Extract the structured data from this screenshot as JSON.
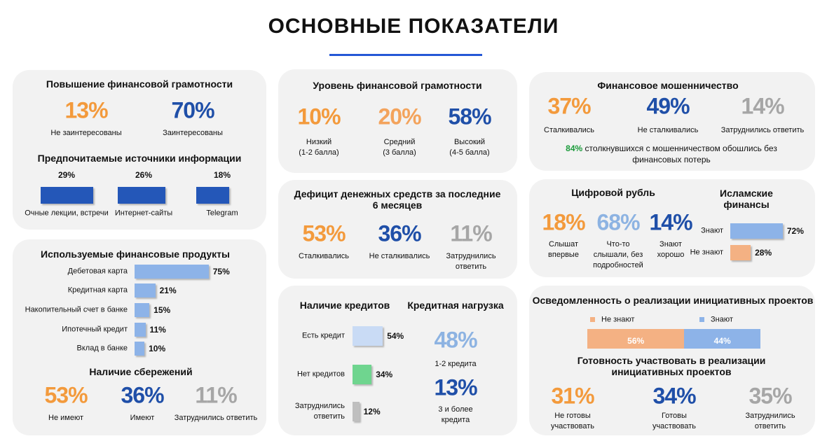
{
  "title": "ОСНОВНЫЕ ПОКАЗАТЕЛИ",
  "literacy_interest": {
    "title": "Повышение финансовой грамотности",
    "stats": [
      {
        "value": "13%",
        "label": "Не заинтересованы",
        "color": "#f39a3c"
      },
      {
        "value": "70%",
        "label": "Заинтересованы",
        "color": "#1f4fa8"
      }
    ]
  },
  "info_sources": {
    "title": "Предпочитаемые источники информации",
    "color": "#2457b8",
    "bars": [
      {
        "value": 29,
        "value_label": "29%",
        "label": "Очные лекции, встречи"
      },
      {
        "value": 26,
        "value_label": "26%",
        "label": "Интернет-сайты"
      },
      {
        "value": 18,
        "value_label": "18%",
        "label": "Telegram"
      }
    ]
  },
  "products": {
    "title": "Используемые финансовые продукты",
    "color": "#8db3e8",
    "bars": [
      {
        "value": 75,
        "value_label": "75%",
        "label": "Дебетовая карта"
      },
      {
        "value": 21,
        "value_label": "21%",
        "label": "Кредитная карта"
      },
      {
        "value": 15,
        "value_label": "15%",
        "label": "Накопительный счет в банке"
      },
      {
        "value": 11,
        "value_label": "11%",
        "label": "Ипотечный кредит"
      },
      {
        "value": 10,
        "value_label": "10%",
        "label": "Вклад в банке"
      }
    ]
  },
  "savings": {
    "title": "Наличие сбережений",
    "stats": [
      {
        "value": "53%",
        "label": "Не имеют",
        "color": "#f39a3c"
      },
      {
        "value": "36%",
        "label": "Имеют",
        "color": "#1f4fa8"
      },
      {
        "value": "11%",
        "label": "Затруднились ответить",
        "color": "#a6a6a6"
      }
    ]
  },
  "literacy_level": {
    "title": "Уровень финансовой грамотности",
    "stats": [
      {
        "value": "10%",
        "label": "Низкий\n(1-2 балла)",
        "color": "#f39a3c"
      },
      {
        "value": "20%",
        "label": "Средний\n(3 балла)",
        "color": "#f3a35c"
      },
      {
        "value": "58%",
        "label": "Высокий\n(4-5 балла)",
        "color": "#1f4fa8"
      }
    ]
  },
  "cash_deficit": {
    "title": "Дефицит денежных средств за последние 6 месяцев",
    "stats": [
      {
        "value": "53%",
        "label": "Сталкивались",
        "color": "#f39a3c"
      },
      {
        "value": "36%",
        "label": "Не сталкивались",
        "color": "#1f4fa8"
      },
      {
        "value": "11%",
        "label": "Затруднились\nответить",
        "color": "#a6a6a6"
      }
    ]
  },
  "credits": {
    "title": "Наличие кредитов",
    "bars": [
      {
        "value": 54,
        "value_label": "54%",
        "label": "Есть кредит",
        "color": "#c9dbf5"
      },
      {
        "value": 34,
        "value_label": "34%",
        "label": "Нет кредитов",
        "color": "#6fd58f"
      },
      {
        "value": 12,
        "value_label": "12%",
        "label": "Затруднились\nответить",
        "color": "#bfbfbf"
      }
    ]
  },
  "credit_load": {
    "title": "Кредитная нагрузка",
    "stats": [
      {
        "value": "48%",
        "label": "1-2 кредита",
        "color": "#8db3e2"
      },
      {
        "value": "13%",
        "label": "3 и более\nкредита",
        "color": "#1f4fa8"
      }
    ]
  },
  "fraud": {
    "title": "Финансовое мошенничество",
    "stats": [
      {
        "value": "37%",
        "label": "Сталкивались",
        "color": "#f39a3c"
      },
      {
        "value": "49%",
        "label": "Не сталкивались",
        "color": "#1f4fa8"
      },
      {
        "value": "14%",
        "label": "Затруднились ответить",
        "color": "#a6a6a6"
      }
    ],
    "note_value": "84%",
    "note": "столкнувшихся с мошенничеством обошлись без финансовых потерь"
  },
  "digital_ruble": {
    "title": "Цифровой рубль",
    "stats": [
      {
        "value": "18%",
        "label": "Слышат\nвпервые",
        "color": "#f39a3c"
      },
      {
        "value": "68%",
        "label": "Что-то\nслышали, без\nподробностей",
        "color": "#8db3e2"
      },
      {
        "value": "14%",
        "label": "Знают\nхорошо",
        "color": "#1f4fa8"
      }
    ]
  },
  "islamic": {
    "title": "Исламские\nфинансы",
    "bars": [
      {
        "value": 72,
        "value_label": "72%",
        "label": "Знают",
        "color": "#8db3e8"
      },
      {
        "value": 28,
        "value_label": "28%",
        "label": "Не знают",
        "color": "#f4b183"
      }
    ]
  },
  "initiative_awareness": {
    "title": "Осведомленность о реализации инициативных проектов",
    "segments": [
      {
        "value": 56,
        "value_label": "56%",
        "label": "Не знают",
        "color": "#f4b183"
      },
      {
        "value": 44,
        "value_label": "44%",
        "label": "Знают",
        "color": "#8db3e8"
      }
    ]
  },
  "initiative_readiness": {
    "title": "Готовность участвовать в реализации инициативных проектов",
    "stats": [
      {
        "value": "31%",
        "label": "Не готовы\nучаствовать",
        "color": "#f39a3c"
      },
      {
        "value": "34%",
        "label": "Готовы\nучаствовать",
        "color": "#1f4fa8"
      },
      {
        "value": "35%",
        "label": "Затруднились\nответить",
        "color": "#a6a6a6"
      }
    ]
  }
}
